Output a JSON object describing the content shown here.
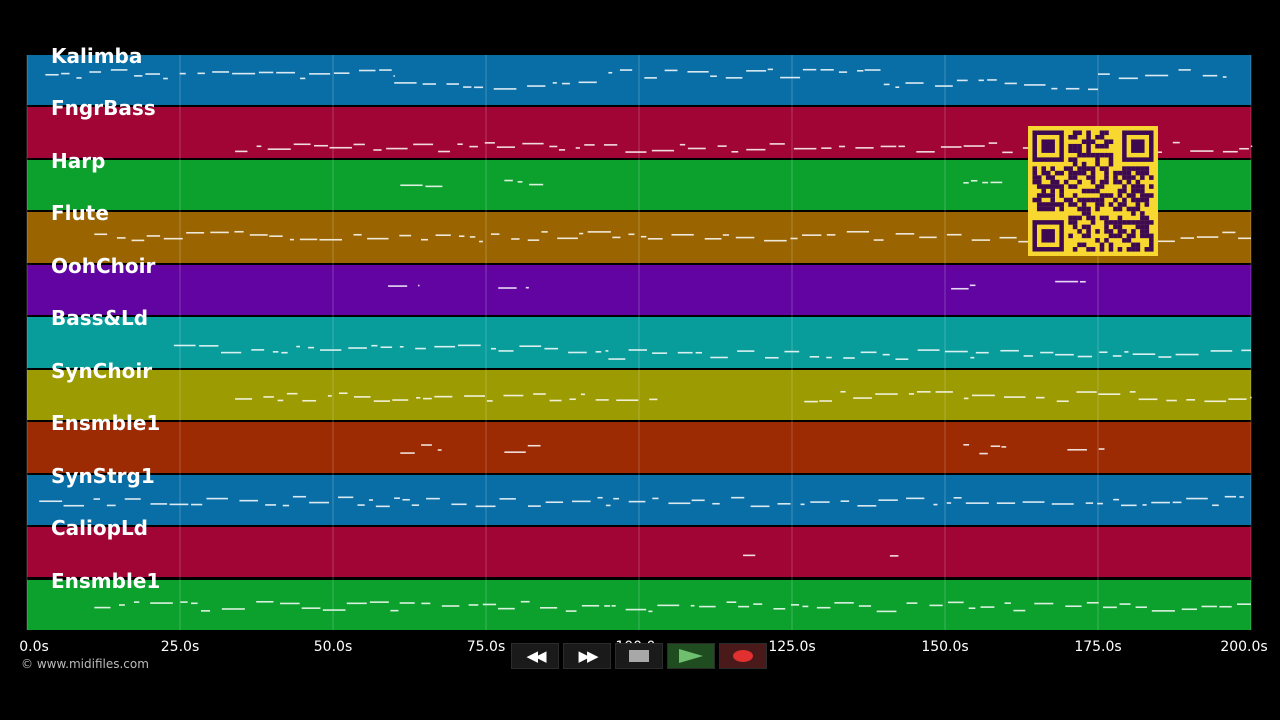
{
  "tracks": [
    {
      "name": "Kalimba",
      "color": "#0a6ea6"
    },
    {
      "name": "FngrBass",
      "color": "#a00535"
    },
    {
      "name": "Harp",
      "color": "#0ca02c"
    },
    {
      "name": "Flute",
      "color": "#9a6500"
    },
    {
      "name": "OohChoir",
      "color": "#6204a2"
    },
    {
      "name": "Bass&Ld",
      "color": "#089c9a"
    },
    {
      "name": "SynChoir",
      "color": "#9c9c02"
    },
    {
      "name": "Ensmble1",
      "color": "#9c2a03"
    },
    {
      "name": "SynStrg1",
      "color": "#0a6ea6"
    },
    {
      "name": "CaliopLd",
      "color": "#a00535"
    },
    {
      "name": "Ensmble1",
      "color": "#0ca02c"
    }
  ],
  "time_axis": {
    "min": 0,
    "max": 200,
    "ticks": [
      {
        "value": 0,
        "label": "0.0s"
      },
      {
        "value": 25,
        "label": "25.0s"
      },
      {
        "value": 50,
        "label": "50.0s"
      },
      {
        "value": 75,
        "label": "75.0s"
      },
      {
        "value": 100,
        "label": "100.0s"
      },
      {
        "value": 125,
        "label": "125.0s"
      },
      {
        "value": 150,
        "label": "150.0s"
      },
      {
        "value": 175,
        "label": "175.0s"
      },
      {
        "value": 200,
        "label": "200.0s"
      }
    ]
  },
  "transport": {
    "rewind_label": "◀◀",
    "forward_label": "▶▶",
    "stop": "stop-icon",
    "play": "play-icon",
    "record": "record-icon"
  },
  "copyright": "© www.midifiles.com",
  "qr_colors": {
    "fg": "#3d0a52",
    "bg": "#f7d730"
  }
}
